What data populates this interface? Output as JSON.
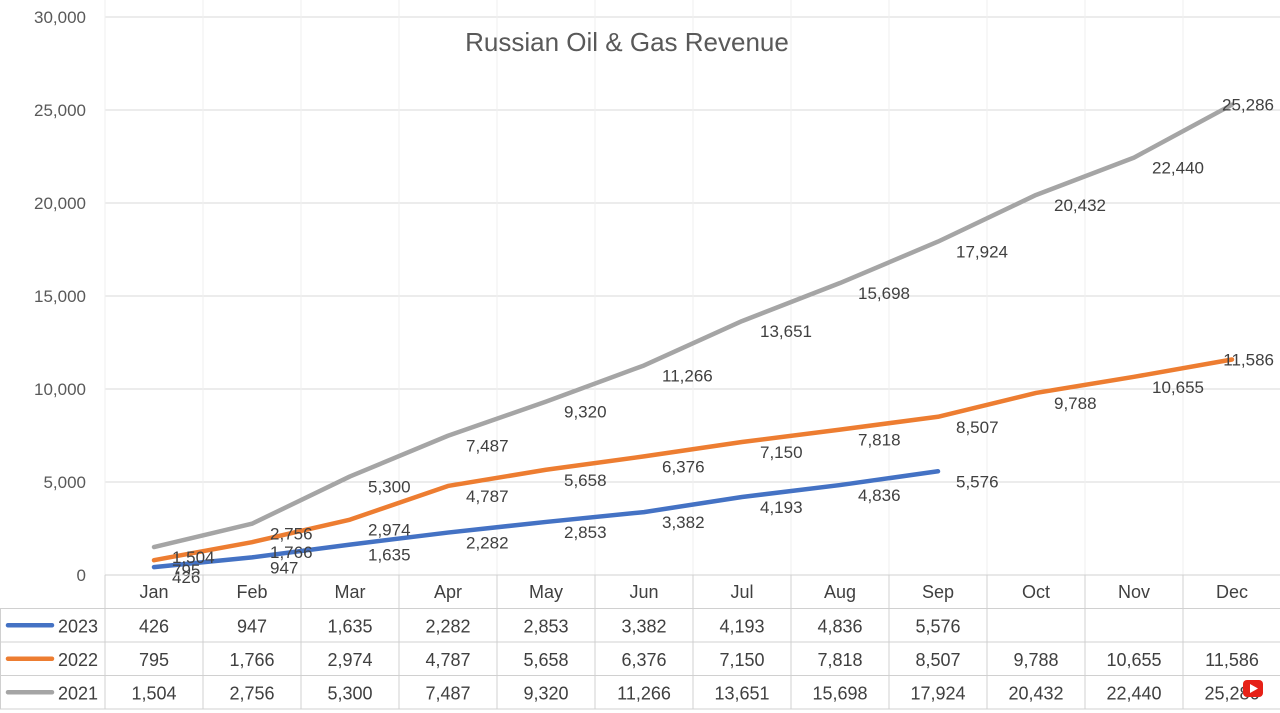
{
  "chart_data": {
    "type": "line",
    "title": "Russian Oil & Gas Revenue",
    "xlabel": "",
    "ylabel": "",
    "ylim": [
      0,
      30000
    ],
    "yticks": [
      "0",
      "5,000",
      "10,000",
      "15,000",
      "20,000",
      "25,000",
      "30,000"
    ],
    "ytick_values": [
      0,
      5000,
      10000,
      15000,
      20000,
      25000,
      30000
    ],
    "grid": true,
    "legend": "data-table",
    "categories": [
      "Jan",
      "Feb",
      "Mar",
      "Apr",
      "May",
      "Jun",
      "Jul",
      "Aug",
      "Sep",
      "Oct",
      "Nov",
      "Dec"
    ],
    "series": [
      {
        "name": "2023",
        "color": "#4472C4",
        "values": [
          426,
          947,
          1635,
          2282,
          2853,
          3382,
          4193,
          4836,
          5576,
          null,
          null,
          null
        ],
        "labels": [
          "426",
          "947",
          "1,635",
          "2,282",
          "2,853",
          "3,382",
          "4,193",
          "4,836",
          "5,576",
          "",
          "",
          ""
        ]
      },
      {
        "name": "2022",
        "color": "#ED7D31",
        "values": [
          795,
          1766,
          2974,
          4787,
          5658,
          6376,
          7150,
          7818,
          8507,
          9788,
          10655,
          11586
        ],
        "labels": [
          "795",
          "1,766",
          "2,974",
          "4,787",
          "5,658",
          "6,376",
          "7,150",
          "7,818",
          "8,507",
          "9,788",
          "10,655",
          "11,586"
        ]
      },
      {
        "name": "2021",
        "color": "#A5A5A5",
        "values": [
          1504,
          2756,
          5300,
          7487,
          9320,
          11266,
          13651,
          15698,
          17924,
          20432,
          22440,
          25286
        ],
        "labels": [
          "1,504",
          "2,756",
          "5,300",
          "7,487",
          "9,320",
          "11,266",
          "13,651",
          "15,698",
          "17,924",
          "20,432",
          "22,440",
          "25,286"
        ]
      }
    ]
  }
}
